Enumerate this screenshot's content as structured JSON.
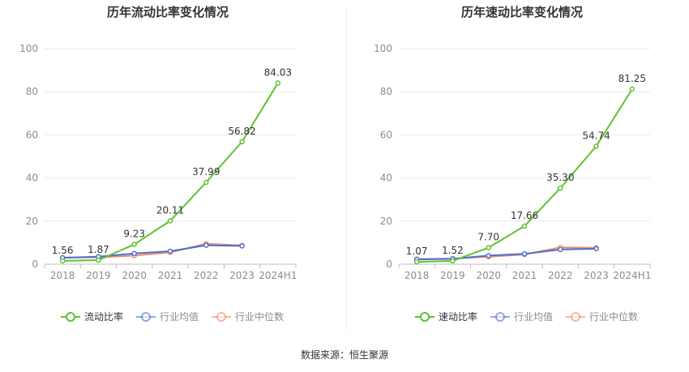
{
  "footer": {
    "source": "数据来源：恒生聚源"
  },
  "colors": {
    "primary": "#5cc42e",
    "average": "#4f6fd0",
    "median": "#f28a6e",
    "axis": "#bfbfbf",
    "grid": "#e6e9f2",
    "tick": "#8c8c8c"
  },
  "chart_data": [
    {
      "type": "line",
      "title": "历年流动比率变化情况",
      "categories": [
        "2018",
        "2019",
        "2020",
        "2021",
        "2022",
        "2023",
        "2024H1"
      ],
      "ylim": [
        0,
        100
      ],
      "yticks": [
        0,
        20,
        40,
        60,
        80,
        100
      ],
      "grid": true,
      "legend_position": "bottom",
      "series": [
        {
          "name": "流动比率",
          "values": [
            1.56,
            1.87,
            9.23,
            20.11,
            37.99,
            56.82,
            84.03
          ],
          "labels": [
            "1.56",
            "1.87",
            "9.23",
            "20.11",
            "37.99",
            "56.82",
            "84.03"
          ],
          "color": "#5cc42e"
        },
        {
          "name": "行业均值",
          "values": [
            3.0,
            3.5,
            5.0,
            6.0,
            8.8,
            8.5,
            null
          ],
          "color": "#4f6fd0"
        },
        {
          "name": "行业中位数",
          "values": [
            3.0,
            3.2,
            4.0,
            5.5,
            9.5,
            8.7,
            null
          ],
          "color": "#f28a6e"
        }
      ]
    },
    {
      "type": "line",
      "title": "历年速动比率变化情况",
      "categories": [
        "2018",
        "2019",
        "2020",
        "2021",
        "2022",
        "2023",
        "2024H1"
      ],
      "ylim": [
        0,
        100
      ],
      "yticks": [
        0,
        20,
        40,
        60,
        80,
        100
      ],
      "grid": true,
      "legend_position": "bottom",
      "series": [
        {
          "name": "速动比率",
          "values": [
            1.07,
            1.52,
            7.7,
            17.66,
            35.3,
            54.74,
            81.25
          ],
          "labels": [
            "1.07",
            "1.52",
            "7.70",
            "17.66",
            "35.30",
            "54.74",
            "81.25"
          ],
          "color": "#5cc42e"
        },
        {
          "name": "行业均值",
          "values": [
            2.2,
            2.5,
            4.0,
            4.8,
            6.8,
            7.2,
            null
          ],
          "color": "#4f6fd0"
        },
        {
          "name": "行业中位数",
          "values": [
            2.4,
            2.6,
            3.5,
            4.5,
            7.8,
            7.6,
            null
          ],
          "color": "#f28a6e"
        }
      ]
    }
  ]
}
